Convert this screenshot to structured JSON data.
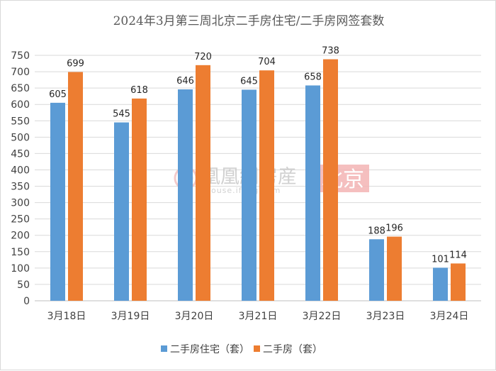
{
  "chart_data": {
    "type": "bar",
    "title": "2024年3月第三周北京二手房住宅/二手房网签套数",
    "categories": [
      "3月18日",
      "3月19日",
      "3月20日",
      "3月21日",
      "3月22日",
      "3月23日",
      "3月24日"
    ],
    "series": [
      {
        "name": "二手房住宅（套）",
        "color": "#5b9bd5",
        "values": [
          605,
          545,
          646,
          645,
          658,
          188,
          101
        ]
      },
      {
        "name": "二手房（套）",
        "color": "#ed7d31",
        "values": [
          699,
          618,
          720,
          704,
          738,
          196,
          114
        ]
      }
    ],
    "ylim": [
      0,
      750
    ],
    "yticks": [
      0,
      50,
      100,
      150,
      200,
      250,
      300,
      350,
      400,
      450,
      500,
      550,
      600,
      650,
      700,
      750
    ],
    "grid": true,
    "legend": "bottom",
    "data_labels": true
  },
  "watermark": {
    "brand": "凰凰網房産",
    "domain": "house.ifeng.com",
    "city": "北京"
  }
}
